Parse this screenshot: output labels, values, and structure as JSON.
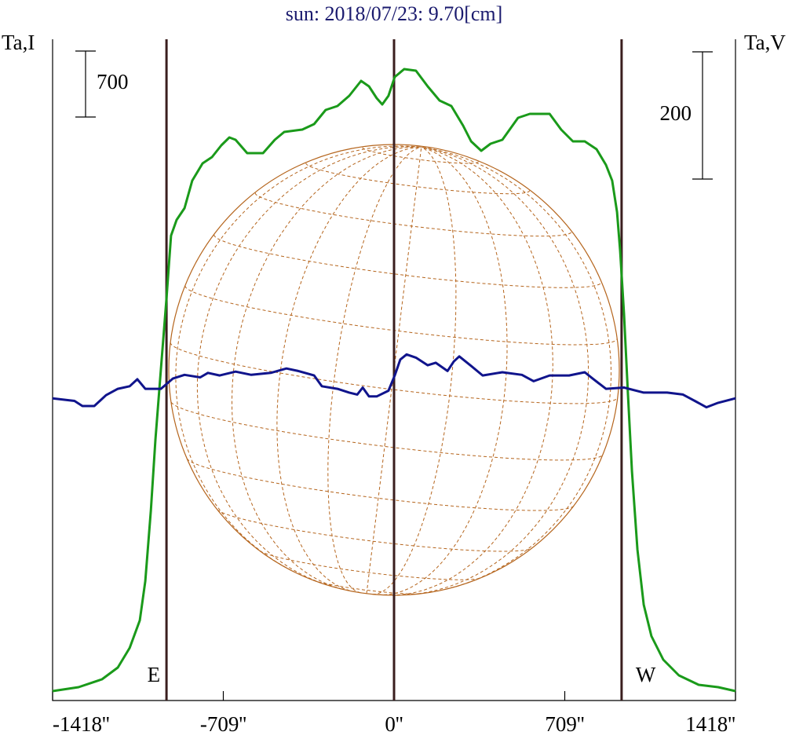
{
  "chart_data": {
    "type": "line",
    "title": "sun: 2018/07/23: 9.70[cm]",
    "y_label": "Ta,I",
    "y2_label": "Ta,V",
    "xlim": [
      -1418,
      1418
    ],
    "xticks": [
      {
        "value": -1418,
        "label": "-1418''"
      },
      {
        "value": -709,
        "label": "-709''"
      },
      {
        "value": 0,
        "label": "0''"
      },
      {
        "value": 709,
        "label": "709''"
      },
      {
        "value": 1418,
        "label": "1418''"
      }
    ],
    "ylim": [
      0,
      7000
    ],
    "y2lim": [
      -480,
      557
    ],
    "i_scale": 700,
    "v_scale": 200,
    "vlines": [
      -945,
      0,
      945
    ],
    "annotations": [
      "E",
      "W"
    ],
    "series": [
      {
        "color": "#1a9a1a",
        "axis": "y",
        "x": [
          -1418,
          -1310,
          -1213,
          -1147,
          -1098,
          -1056,
          -1033,
          -1010,
          -991,
          -968,
          -945,
          -926,
          -903,
          -870,
          -838,
          -795,
          -756,
          -717,
          -684,
          -658,
          -610,
          -544,
          -495,
          -456,
          -381,
          -332,
          -284,
          -235,
          -186,
          -137,
          -104,
          -72,
          -49,
          -23,
          3,
          42,
          91,
          140,
          189,
          238,
          287,
          320,
          362,
          401,
          450,
          515,
          564,
          646,
          694,
          743,
          792,
          841,
          880,
          906,
          926,
          939,
          955,
          971,
          988,
          1011,
          1037,
          1069,
          1118,
          1183,
          1265,
          1346,
          1418
        ],
        "values": [
          100,
          142,
          225,
          350,
          558,
          850,
          1267,
          2017,
          2767,
          3517,
          4267,
          4933,
          5100,
          5225,
          5517,
          5700,
          5767,
          5892,
          5975,
          5950,
          5808,
          5808,
          5950,
          6033,
          6058,
          6117,
          6267,
          6308,
          6417,
          6575,
          6517,
          6392,
          6325,
          6417,
          6617,
          6700,
          6683,
          6517,
          6367,
          6308,
          6100,
          5933,
          5833,
          5908,
          5950,
          6183,
          6225,
          6225,
          6058,
          5933,
          5933,
          5850,
          5683,
          5517,
          5183,
          4767,
          4100,
          3267,
          2433,
          1600,
          1017,
          683,
          433,
          267,
          167,
          142,
          100
        ]
      },
      {
        "color": "#10148c",
        "axis": "y2",
        "x": [
          -1418,
          -1327,
          -1294,
          -1245,
          -1196,
          -1147,
          -1098,
          -1066,
          -1033,
          -968,
          -919,
          -870,
          -805,
          -773,
          -724,
          -658,
          -593,
          -512,
          -447,
          -398,
          -332,
          -300,
          -235,
          -186,
          -153,
          -130,
          -104,
          -72,
          -23,
          3,
          26,
          52,
          91,
          140,
          173,
          222,
          248,
          271,
          320,
          368,
          450,
          531,
          580,
          646,
          727,
          792,
          825,
          880,
          955,
          1037,
          1134,
          1200,
          1249,
          1297,
          1346,
          1418
        ],
        "values": [
          -5,
          -9,
          -17,
          -17,
          0,
          10,
          14,
          25,
          10,
          10,
          26,
          32,
          28,
          35,
          31,
          37,
          32,
          35,
          42,
          38,
          31,
          14,
          10,
          4,
          1,
          12,
          -2,
          -2,
          7,
          31,
          56,
          64,
          59,
          47,
          51,
          38,
          53,
          61,
          46,
          31,
          36,
          32,
          22,
          31,
          31,
          36,
          26,
          10,
          12,
          4,
          4,
          1,
          -9,
          -19,
          -12,
          -5
        ]
      }
    ]
  }
}
